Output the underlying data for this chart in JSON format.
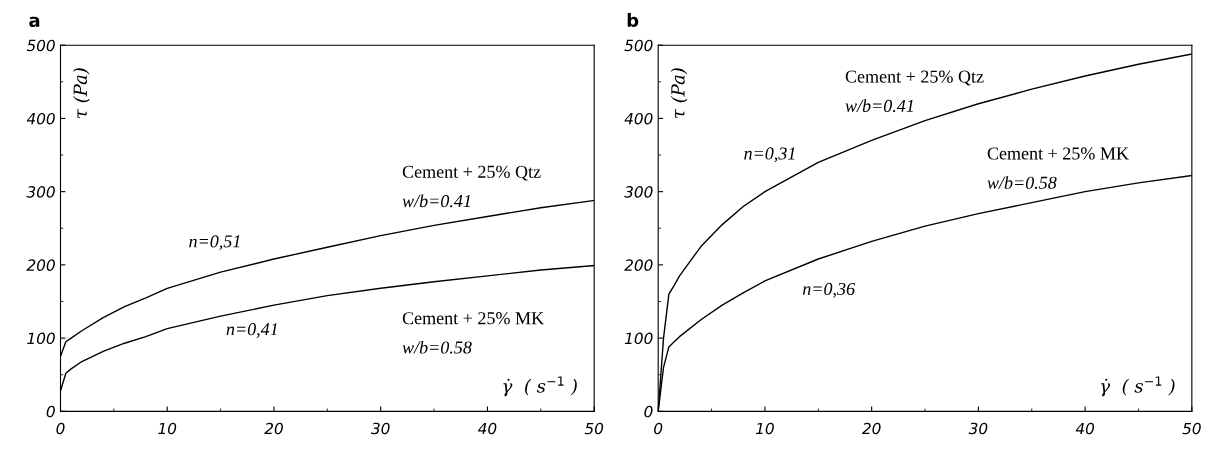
{
  "chart_data": [
    {
      "type": "line",
      "title": "a",
      "xlabel": "γ̇  ( s$^{−1}$ )",
      "ylabel": "τ (Pa)",
      "xlim": [
        0,
        50
      ],
      "ylim": [
        0,
        500
      ],
      "xticks": [
        0,
        10,
        20,
        30,
        40,
        50
      ],
      "yticks": [
        0,
        100,
        200,
        300,
        400,
        500
      ],
      "grid": false,
      "legend": false,
      "marker": "none",
      "line_style": "solid",
      "series": [
        {
          "color": "#000000",
          "x": [
            0,
            0.5,
            1,
            2,
            4,
            6,
            8,
            10,
            15,
            20,
            25,
            30,
            35,
            40,
            45,
            50
          ],
          "values": [
            75,
            95,
            100,
            110,
            128,
            143,
            155,
            168,
            190,
            208,
            224,
            240,
            254,
            266,
            278,
            288
          ]
        },
        {
          "color": "#000000",
          "x": [
            0,
            0.5,
            1,
            2,
            4,
            6,
            8,
            10,
            15,
            20,
            25,
            30,
            35,
            40,
            45,
            50
          ],
          "values": [
            28,
            52,
            58,
            68,
            82,
            93,
            102,
            113,
            130,
            145,
            158,
            168,
            177,
            185,
            193,
            199
          ]
        }
      ],
      "annotations": [
        "Cement + 25% Qtz",
        "w/b=0.41",
        "n=0,51",
        "n=0,41",
        "Cement + 25% MK",
        "w/b=0.58"
      ]
    },
    {
      "type": "line",
      "title": "b",
      "xlabel": "γ̇  ( s$^{−1}$ )",
      "ylabel": "τ (Pa)",
      "xlim": [
        0,
        50
      ],
      "ylim": [
        0,
        500
      ],
      "xticks": [
        0,
        10,
        20,
        30,
        40,
        50
      ],
      "yticks": [
        0,
        100,
        200,
        300,
        400,
        500
      ],
      "grid": false,
      "legend": false,
      "marker": "none",
      "line_style": "solid",
      "series": [
        {
          "color": "#000000",
          "x": [
            0,
            0.5,
            1,
            1.5,
            2,
            4,
            6,
            8,
            10,
            15,
            20,
            25,
            30,
            35,
            40,
            45,
            50
          ],
          "values": [
            0,
            100,
            160,
            172,
            185,
            225,
            255,
            280,
            300,
            340,
            370,
            397,
            420,
            440,
            458,
            474,
            488
          ]
        },
        {
          "color": "#000000",
          "x": [
            0,
            0.5,
            1,
            1.5,
            2,
            4,
            6,
            8,
            10,
            15,
            20,
            25,
            30,
            35,
            40,
            45,
            50
          ],
          "values": [
            0,
            60,
            88,
            95,
            102,
            125,
            145,
            162,
            178,
            208,
            232,
            253,
            270,
            285,
            300,
            312,
            322
          ]
        }
      ],
      "annotations": [
        "Cement + 25% Qtz",
        "w/b=0.41",
        "n=0,31",
        "n=0,36",
        "Cement + 25% MK",
        "w/b=0.58"
      ]
    }
  ]
}
